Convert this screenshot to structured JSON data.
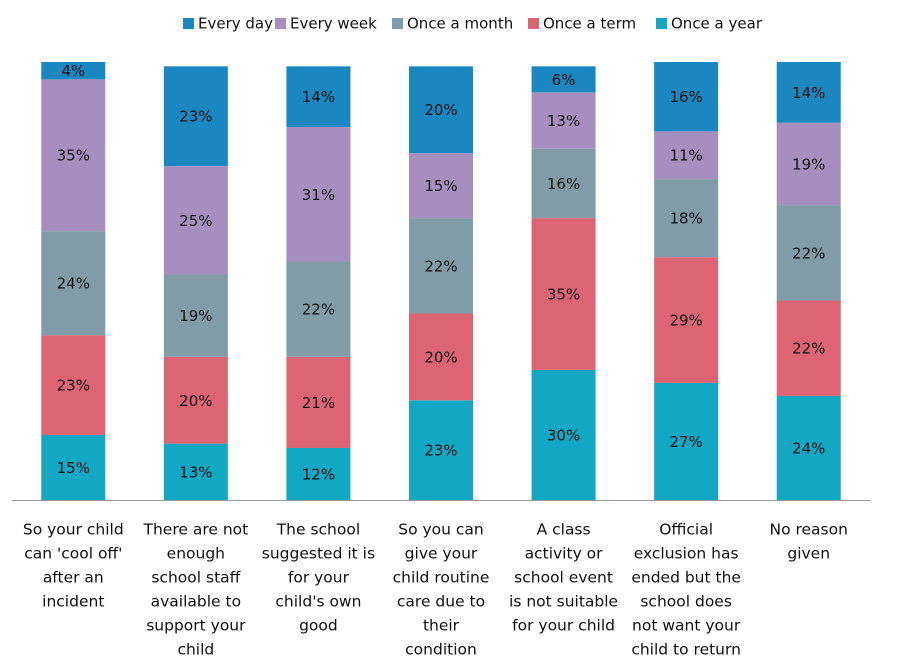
{
  "chart_data": {
    "type": "stacked_bar",
    "categories": [
      [
        "So your child",
        "can 'cool off'",
        "after an",
        "incident"
      ],
      [
        "There are not",
        "enough",
        "school staff",
        "available to",
        "support your",
        "child"
      ],
      [
        "The school",
        "suggested it is",
        "for your",
        "child's own",
        "good"
      ],
      [
        "So you can",
        "give your",
        "child routine",
        "care due to",
        "their",
        "condition"
      ],
      [
        "A class",
        "activity or",
        "school event",
        "is not suitable",
        "for your child"
      ],
      [
        "Official",
        "exclusion has",
        "ended but the",
        "school does",
        "not want your",
        "child to return"
      ],
      [
        "No reason",
        "given"
      ]
    ],
    "series": [
      {
        "name": "Every day",
        "color": "#1a87c0",
        "values": [
          4,
          23,
          14,
          20,
          6,
          16,
          14
        ],
        "value_labels": [
          "4%",
          "23%",
          "14%",
          "20%",
          "6%",
          "16%",
          "14%"
        ]
      },
      {
        "name": "Every week",
        "color": "#a68fbf",
        "values": [
          35,
          25,
          31,
          15,
          13,
          11,
          19
        ],
        "value_labels": [
          "35%",
          "25%",
          "31%",
          "15%",
          "13%",
          "11%",
          "19%"
        ]
      },
      {
        "name": "Once a month",
        "color": "#7f9ca8",
        "values": [
          24,
          19,
          22,
          22,
          16,
          18,
          22
        ],
        "value_labels": [
          "24%",
          "19%",
          "22%",
          "22%",
          "16%",
          "18%",
          "22%"
        ]
      },
      {
        "name": "Once a term",
        "color": "#dc6473",
        "values": [
          23,
          20,
          21,
          20,
          35,
          29,
          22
        ],
        "value_labels": [
          "23%",
          "20%",
          "21%",
          "20%",
          "35%",
          "29%",
          "22%"
        ]
      },
      {
        "name": "Once a year",
        "color": "#12a8c4",
        "values": [
          15,
          13,
          12,
          23,
          30,
          27,
          24
        ],
        "value_labels": [
          "15%",
          "13%",
          "12%",
          "23%",
          "30%",
          "27%",
          "24%"
        ]
      }
    ],
    "ylim": [
      0,
      101
    ]
  }
}
